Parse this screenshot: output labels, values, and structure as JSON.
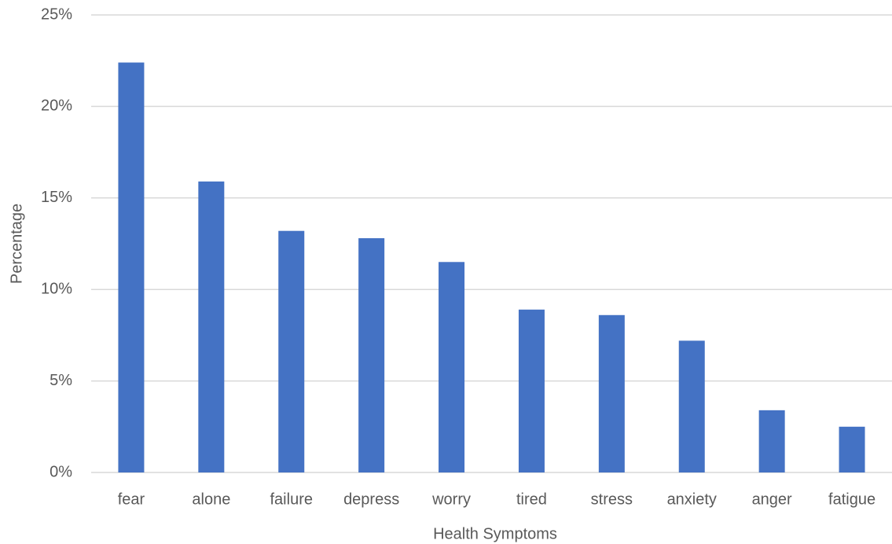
{
  "chart_data": {
    "type": "bar",
    "x_label": "Health Symptoms",
    "y_label": "Percentage",
    "categories": [
      "fear",
      "alone",
      "failure",
      "depress",
      "worry",
      "tired",
      "stress",
      "anxiety",
      "anger",
      "fatigue"
    ],
    "values": [
      22.4,
      15.9,
      13.2,
      12.8,
      11.5,
      8.9,
      8.6,
      7.2,
      3.4,
      2.5
    ],
    "color": "#4472c4",
    "ylim": [
      0,
      25
    ],
    "yticks": [
      {
        "value": 0,
        "label": "0%"
      },
      {
        "value": 5,
        "label": "5%"
      },
      {
        "value": 10,
        "label": "10%"
      },
      {
        "value": 15,
        "label": "15%"
      },
      {
        "value": 20,
        "label": "20%"
      },
      {
        "value": 25,
        "label": "25%"
      }
    ],
    "grid": true
  }
}
